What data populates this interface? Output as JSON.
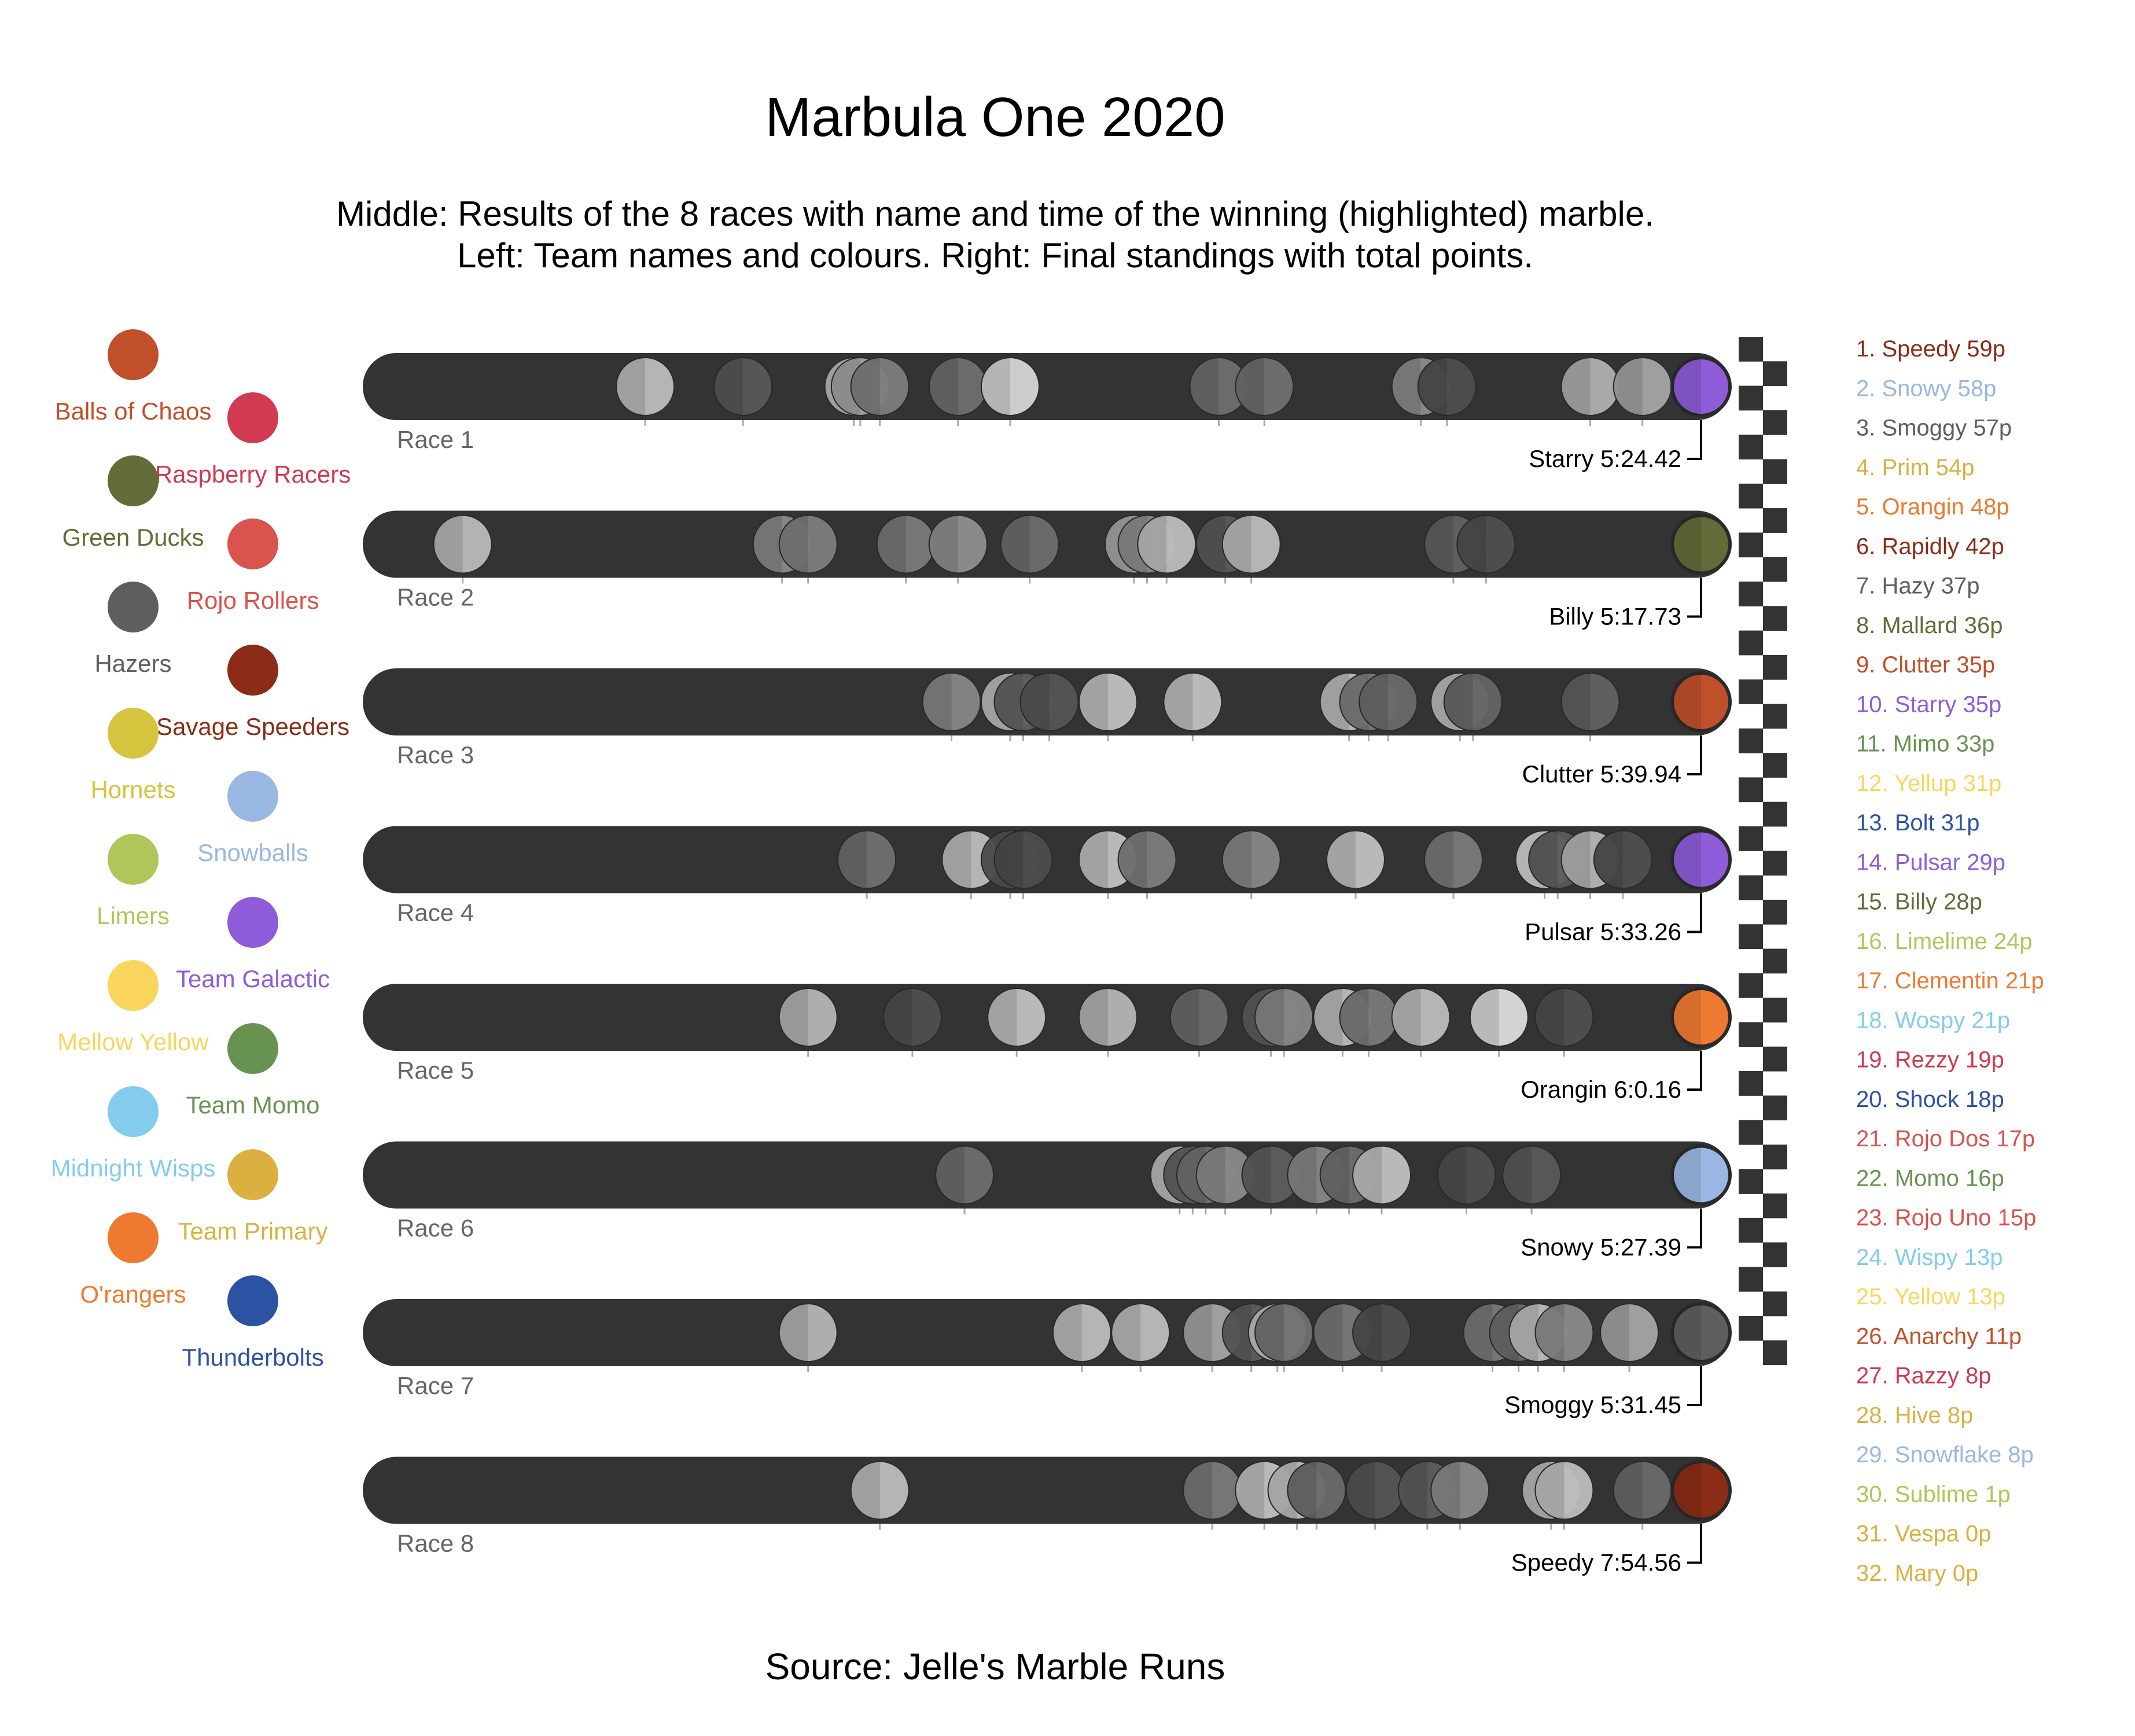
{
  "chart_data": {
    "type": "scatter",
    "title": "Marbula One 2020",
    "subtitle_lines": [
      "Middle: Results of the 8 races with name and time of the winning (highlighted) marble.",
      "Left: Team names and colours. Right: Final standings with total points."
    ],
    "source": "Source: Jelle's Marble Runs",
    "track_color": "#333333",
    "teams": [
      {
        "name": "Balls of Chaos",
        "color": "#C0502A"
      },
      {
        "name": "Raspberry Racers",
        "color": "#D13A50"
      },
      {
        "name": "Green Ducks",
        "color": "#636B38"
      },
      {
        "name": "Rojo Rollers",
        "color": "#D9534F"
      },
      {
        "name": "Hazers",
        "color": "#5E5E5E"
      },
      {
        "name": "Savage Speeders",
        "color": "#8B2C17"
      },
      {
        "name": "Hornets",
        "color": "#D4C43E"
      },
      {
        "name": "Snowballs",
        "color": "#9AB7E3"
      },
      {
        "name": "Limers",
        "color": "#AFC65A"
      },
      {
        "name": "Team Galactic",
        "color": "#8E5CD9"
      },
      {
        "name": "Mellow Yellow",
        "color": "#FAD55E"
      },
      {
        "name": "Team Momo",
        "color": "#689250"
      },
      {
        "name": "Midnight Wisps",
        "color": "#84CCEE"
      },
      {
        "name": "Team Primary",
        "color": "#DBB040"
      },
      {
        "name": "O'rangers",
        "color": "#EE7A32"
      },
      {
        "name": "Thunderbolts",
        "color": "#2C52A3"
      }
    ],
    "races": [
      {
        "label": "Race 1",
        "winner": "Starry 5:24.42",
        "winner_color": "#8E5CD9",
        "marbles": [
          [
            0.19,
            "#BDBDBD"
          ],
          [
            0.265,
            "#595959"
          ],
          [
            0.35,
            "#BDBDBD"
          ],
          [
            0.355,
            "#A0A0A0"
          ],
          [
            0.37,
            "#7D7D7D"
          ],
          [
            0.43,
            "#6F6F6F"
          ],
          [
            0.47,
            "#D6D6D6"
          ],
          [
            0.63,
            "#6F6F6F"
          ],
          [
            0.665,
            "#707070"
          ],
          [
            0.785,
            "#8C8C8C"
          ],
          [
            0.805,
            "#4E4E4E"
          ],
          [
            0.915,
            "#B0B0B0"
          ],
          [
            0.955,
            "#A5A5A5"
          ]
        ]
      },
      {
        "label": "Race 2",
        "winner": "Billy 5:17.73",
        "winner_color": "#636B38",
        "marbles": [
          [
            0.05,
            "#BABABA"
          ],
          [
            0.295,
            "#8A8A8A"
          ],
          [
            0.315,
            "#7D7D7D"
          ],
          [
            0.39,
            "#7A7A7A"
          ],
          [
            0.43,
            "#8F8F8F"
          ],
          [
            0.485,
            "#6E6E6E"
          ],
          [
            0.565,
            "#A9A9A9"
          ],
          [
            0.575,
            "#8A8A8A"
          ],
          [
            0.59,
            "#BDBDBD"
          ],
          [
            0.635,
            "#5B5B5B"
          ],
          [
            0.655,
            "#BDBDBD"
          ],
          [
            0.81,
            "#626262"
          ],
          [
            0.835,
            "#4F4F4F"
          ]
        ]
      },
      {
        "label": "Race 3",
        "winner": "Clutter 5:39.94",
        "winner_color": "#C0502A",
        "marbles": [
          [
            0.425,
            "#878787"
          ],
          [
            0.47,
            "#BDBDBD"
          ],
          [
            0.48,
            "#5E5E5E"
          ],
          [
            0.5,
            "#555555"
          ],
          [
            0.545,
            "#C1C1C1"
          ],
          [
            0.61,
            "#C1C1C1"
          ],
          [
            0.73,
            "#BDBDBD"
          ],
          [
            0.745,
            "#7A7A7A"
          ],
          [
            0.76,
            "#6A6A6A"
          ],
          [
            0.815,
            "#BDBDBD"
          ],
          [
            0.825,
            "#646464"
          ],
          [
            0.915,
            "#616161"
          ]
        ]
      },
      {
        "label": "Race 4",
        "winner": "Pulsar 5:33.26",
        "winner_color": "#8E5CD9",
        "marbles": [
          [
            0.36,
            "#707070"
          ],
          [
            0.44,
            "#BDBDBD"
          ],
          [
            0.47,
            "#555555"
          ],
          [
            0.48,
            "#4D4D4D"
          ],
          [
            0.545,
            "#C1C1C1"
          ],
          [
            0.575,
            "#7D7D7D"
          ],
          [
            0.655,
            "#878787"
          ],
          [
            0.735,
            "#C1C1C1"
          ],
          [
            0.81,
            "#7A7A7A"
          ],
          [
            0.88,
            "#D5D5D5"
          ],
          [
            0.89,
            "#5A5A5A"
          ],
          [
            0.915,
            "#B5B5B5"
          ],
          [
            0.94,
            "#4F4F4F"
          ]
        ]
      },
      {
        "label": "Race 5",
        "winner": "Orangin 6:0.16",
        "winner_color": "#EE7A32",
        "marbles": [
          [
            0.315,
            "#B5B5B5"
          ],
          [
            0.395,
            "#4F4F4F"
          ],
          [
            0.475,
            "#C1C1C1"
          ],
          [
            0.545,
            "#B5B5B5"
          ],
          [
            0.615,
            "#6A6A6A"
          ],
          [
            0.67,
            "#5E5E5E"
          ],
          [
            0.68,
            "#878787"
          ],
          [
            0.725,
            "#BDBDBD"
          ],
          [
            0.745,
            "#797979"
          ],
          [
            0.785,
            "#BDBDBD"
          ],
          [
            0.845,
            "#DCDCDC"
          ],
          [
            0.895,
            "#4F4F4F"
          ]
        ]
      },
      {
        "label": "Race 6",
        "winner": "Snowy 5:27.39",
        "winner_color": "#9AB7E3",
        "marbles": [
          [
            0.435,
            "#6E6E6E"
          ],
          [
            0.6,
            "#BDBDBD"
          ],
          [
            0.61,
            "#5E5E5E"
          ],
          [
            0.62,
            "#707070"
          ],
          [
            0.635,
            "#8A8A8A"
          ],
          [
            0.67,
            "#5E5E5E"
          ],
          [
            0.705,
            "#878787"
          ],
          [
            0.73,
            "#6E6E6E"
          ],
          [
            0.755,
            "#C1C1C1"
          ],
          [
            0.82,
            "#4F4F4F"
          ],
          [
            0.87,
            "#5A5A5A"
          ]
        ]
      },
      {
        "label": "Race 7",
        "winner": "Smoggy 5:31.45",
        "winner_color": "#5E5E5E",
        "marbles": [
          [
            0.315,
            "#B5B5B5"
          ],
          [
            0.525,
            "#BDBDBD"
          ],
          [
            0.57,
            "#BDBDBD"
          ],
          [
            0.625,
            "#A5A5A5"
          ],
          [
            0.655,
            "#5E5E5E"
          ],
          [
            0.675,
            "#C1C1C1"
          ],
          [
            0.68,
            "#707070"
          ],
          [
            0.725,
            "#797979"
          ],
          [
            0.755,
            "#4F4F4F"
          ],
          [
            0.84,
            "#7A7A7A"
          ],
          [
            0.86,
            "#6A6A6A"
          ],
          [
            0.875,
            "#BDBDBD"
          ],
          [
            0.895,
            "#8A8A8A"
          ],
          [
            0.945,
            "#A5A5A5"
          ]
        ]
      },
      {
        "label": "Race 8",
        "winner": "Speedy 7:54.56",
        "winner_color": "#8B2C17",
        "marbles": [
          [
            0.37,
            "#BDBDBD"
          ],
          [
            0.625,
            "#7A7A7A"
          ],
          [
            0.665,
            "#C1C1C1"
          ],
          [
            0.69,
            "#BDBDBD"
          ],
          [
            0.705,
            "#6A6A6A"
          ],
          [
            0.75,
            "#555555"
          ],
          [
            0.79,
            "#5E5E5E"
          ],
          [
            0.815,
            "#8A8A8A"
          ],
          [
            0.885,
            "#BDBDBD"
          ],
          [
            0.895,
            "#BDBDBD"
          ],
          [
            0.955,
            "#6A6A6A"
          ]
        ]
      }
    ],
    "standings": [
      {
        "label": "1. Speedy 59p",
        "color": "#8B2C17"
      },
      {
        "label": "2. Snowy 58p",
        "color": "#9AB7E3"
      },
      {
        "label": "3. Smoggy 57p",
        "color": "#5E5E5E"
      },
      {
        "label": "4. Prim 54p",
        "color": "#DBB040"
      },
      {
        "label": "5. Orangin 48p",
        "color": "#EE7A32"
      },
      {
        "label": "6. Rapidly 42p",
        "color": "#8B2C17"
      },
      {
        "label": "7. Hazy 37p",
        "color": "#5E5E5E"
      },
      {
        "label": "8. Mallard 36p",
        "color": "#636B38"
      },
      {
        "label": "9. Clutter 35p",
        "color": "#C0502A"
      },
      {
        "label": "10. Starry 35p",
        "color": "#8E5CD9"
      },
      {
        "label": "11. Mimo 33p",
        "color": "#689250"
      },
      {
        "label": "12. Yellup 31p",
        "color": "#FAD55E"
      },
      {
        "label": "13. Bolt 31p",
        "color": "#2C52A3"
      },
      {
        "label": "14. Pulsar 29p",
        "color": "#8E5CD9"
      },
      {
        "label": "15. Billy 28p",
        "color": "#636B38"
      },
      {
        "label": "16. Limelime 24p",
        "color": "#AFC65A"
      },
      {
        "label": "17. Clementin 21p",
        "color": "#EE7A32"
      },
      {
        "label": "18. Wospy 21p",
        "color": "#84CCEE"
      },
      {
        "label": "19. Rezzy 19p",
        "color": "#D13A50"
      },
      {
        "label": "20. Shock 18p",
        "color": "#2C52A3"
      },
      {
        "label": "21. Rojo Dos 17p",
        "color": "#D9534F"
      },
      {
        "label": "22. Momo 16p",
        "color": "#689250"
      },
      {
        "label": "23. Rojo Uno 15p",
        "color": "#D9534F"
      },
      {
        "label": "24. Wispy 13p",
        "color": "#84CCEE"
      },
      {
        "label": "25. Yellow 13p",
        "color": "#FAD55E"
      },
      {
        "label": "26. Anarchy 11p",
        "color": "#C0502A"
      },
      {
        "label": "27. Razzy 8p",
        "color": "#D13A50"
      },
      {
        "label": "28. Hive 8p",
        "color": "#DBB040"
      },
      {
        "label": "29. Snowflake 8p",
        "color": "#9AB7E3"
      },
      {
        "label": "30. Sublime 1p",
        "color": "#AFC65A"
      },
      {
        "label": "31. Vespa 0p",
        "color": "#DBB040"
      },
      {
        "label": "32. Mary 0p",
        "color": "#DBB040"
      }
    ]
  }
}
